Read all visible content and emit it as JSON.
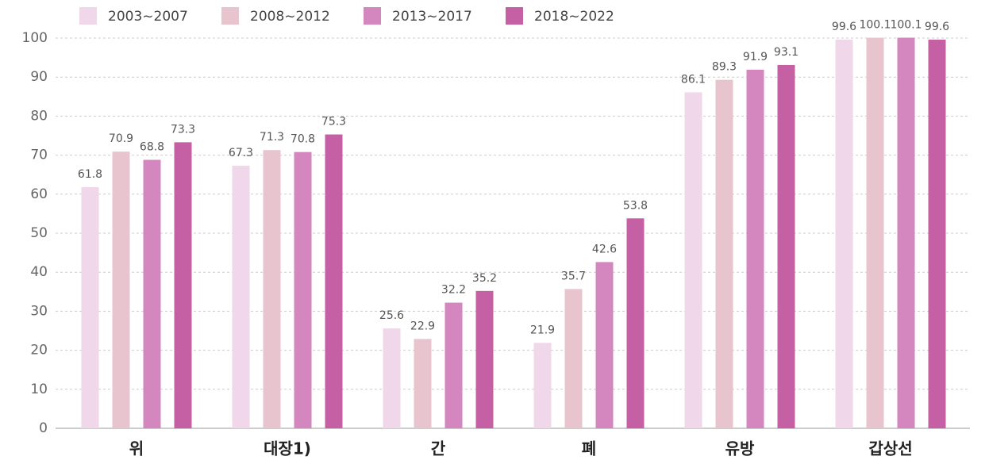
{
  "chart_data": {
    "type": "bar",
    "categories": [
      "위",
      "대장1)",
      "간",
      "폐",
      "유방",
      "갑상선"
    ],
    "series": [
      {
        "name": "2003~2007",
        "color": "#f0d8ea",
        "values": [
          61.8,
          67.3,
          25.6,
          21.9,
          86.1,
          99.6
        ]
      },
      {
        "name": "2008~2012",
        "color": "#e8c4cf",
        "values": [
          70.9,
          71.3,
          22.9,
          35.7,
          89.3,
          100.1
        ]
      },
      {
        "name": "2013~2017",
        "color": "#d487bf",
        "values": [
          68.8,
          70.8,
          32.2,
          42.6,
          91.9,
          100.1
        ]
      },
      {
        "name": "2018~2022",
        "color": "#c460a3",
        "values": [
          73.3,
          75.3,
          35.2,
          53.8,
          93.1,
          99.6
        ]
      }
    ],
    "ylim": [
      0,
      100
    ],
    "yticks": [
      0,
      10,
      20,
      30,
      40,
      50,
      60,
      70,
      80,
      90,
      100
    ],
    "grid": true
  }
}
